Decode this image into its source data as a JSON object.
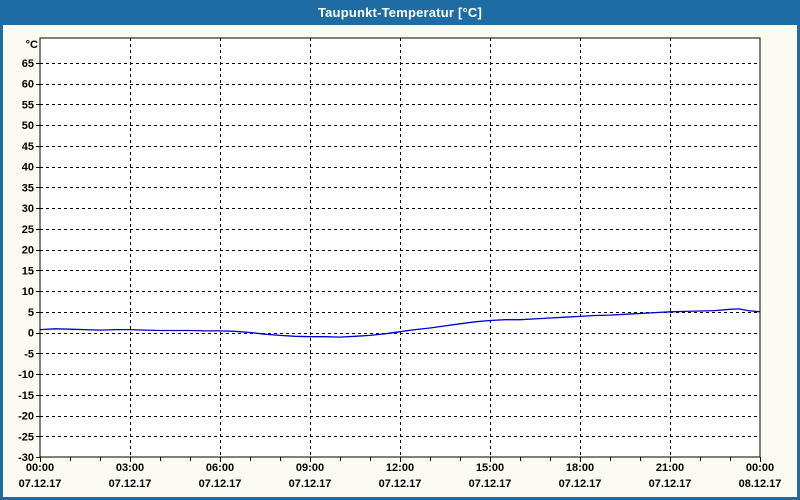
{
  "window": {
    "title": "Taupunkt-Temperatur [°C]"
  },
  "colors": {
    "header_bg": "#1E6CA3",
    "frame": "#1E6CA3",
    "title_text": "#FFFFFF",
    "page_bg": "#FBFBF2",
    "plot_bg": "#FFFFFF",
    "grid": "#000000",
    "axis": "#000000",
    "label": "#000000",
    "line": "#0000CD"
  },
  "chart_data": {
    "type": "line",
    "title": "Taupunkt-Temperatur [°C]",
    "xlabel": "",
    "ylabel": "°C",
    "grid": true,
    "legend_position": "none",
    "ylim": [
      -30,
      71
    ],
    "xlim_hours": [
      0,
      24
    ],
    "y_ticks": [
      -30,
      -25,
      -20,
      -15,
      -10,
      -5,
      0,
      5,
      10,
      15,
      20,
      25,
      30,
      35,
      40,
      45,
      50,
      55,
      60,
      65
    ],
    "x_minor_tick_every_hours": 1,
    "x_major_ticks": [
      {
        "hour": 0,
        "time": "00:00",
        "date": "07.12.17"
      },
      {
        "hour": 3,
        "time": "03:00",
        "date": "07.12.17"
      },
      {
        "hour": 6,
        "time": "06:00",
        "date": "07.12.17"
      },
      {
        "hour": 9,
        "time": "09:00",
        "date": "07.12.17"
      },
      {
        "hour": 12,
        "time": "12:00",
        "date": "07.12.17"
      },
      {
        "hour": 15,
        "time": "15:00",
        "date": "07.12.17"
      },
      {
        "hour": 18,
        "time": "18:00",
        "date": "07.12.17"
      },
      {
        "hour": 21,
        "time": "21:00",
        "date": "07.12.17"
      },
      {
        "hour": 24,
        "time": "00:00",
        "date": "08.12.17"
      }
    ],
    "series": [
      {
        "name": "Taupunkt-Temperatur",
        "color": "#0000CD",
        "points": [
          [
            0,
            0.7
          ],
          [
            0.5,
            0.9
          ],
          [
            1,
            0.8
          ],
          [
            1.5,
            0.7
          ],
          [
            2,
            0.6
          ],
          [
            2.5,
            0.7
          ],
          [
            3,
            0.7
          ],
          [
            3.5,
            0.6
          ],
          [
            4,
            0.5
          ],
          [
            4.5,
            0.5
          ],
          [
            5,
            0.5
          ],
          [
            5.5,
            0.4
          ],
          [
            6,
            0.4
          ],
          [
            6.5,
            0.3
          ],
          [
            7,
            0.0
          ],
          [
            7.5,
            -0.4
          ],
          [
            8,
            -0.7
          ],
          [
            8.5,
            -0.9
          ],
          [
            9,
            -1.0
          ],
          [
            9.5,
            -1.0
          ],
          [
            10,
            -1.1
          ],
          [
            10.5,
            -0.9
          ],
          [
            11,
            -0.7
          ],
          [
            11.5,
            -0.3
          ],
          [
            12,
            0.2
          ],
          [
            12.5,
            0.7
          ],
          [
            13,
            1.1
          ],
          [
            13.5,
            1.6
          ],
          [
            14,
            2.1
          ],
          [
            14.5,
            2.6
          ],
          [
            15,
            2.9
          ],
          [
            15.5,
            3.1
          ],
          [
            16,
            3.1
          ],
          [
            16.5,
            3.3
          ],
          [
            17,
            3.5
          ],
          [
            17.5,
            3.7
          ],
          [
            18,
            3.9
          ],
          [
            18.5,
            4.1
          ],
          [
            19,
            4.2
          ],
          [
            19.5,
            4.4
          ],
          [
            20,
            4.6
          ],
          [
            20.5,
            4.8
          ],
          [
            21,
            5.0
          ],
          [
            21.5,
            5.1
          ],
          [
            22,
            5.2
          ],
          [
            22.5,
            5.3
          ],
          [
            23,
            5.6
          ],
          [
            23.3,
            5.7
          ],
          [
            23.6,
            5.3
          ],
          [
            24,
            5.0
          ]
        ]
      }
    ]
  }
}
